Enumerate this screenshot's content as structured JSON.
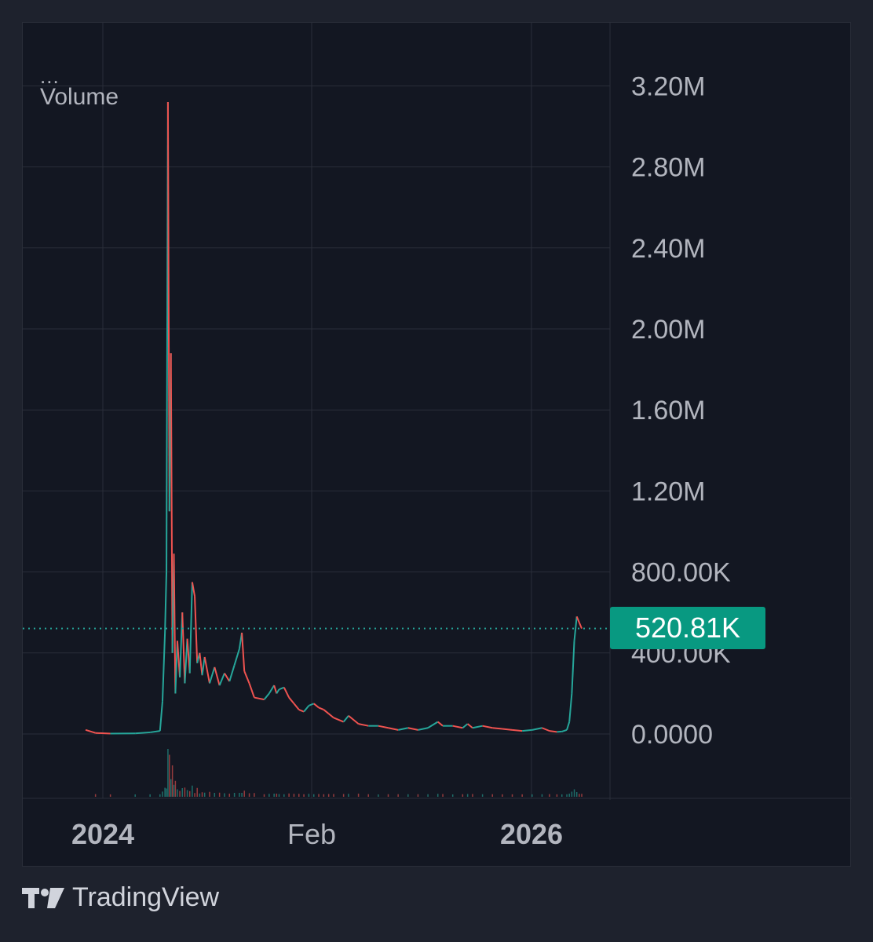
{
  "legend": {
    "menu": "...",
    "indicator": "Volume"
  },
  "last_value_label": "520.81K",
  "brand": {
    "name": "TradingView",
    "icon": "tradingview-logo-icon"
  },
  "colors": {
    "background": "#131722",
    "up": "#26a69a",
    "down": "#ef5350",
    "last_value_tag": "#089981",
    "grid": "#2a2e39",
    "axis_text": "#b2b5be"
  },
  "chart_data": {
    "type": "line",
    "x_tick_labels": [
      "2024",
      "Feb",
      "2026"
    ],
    "y_tick_labels": [
      "3.20M",
      "2.80M",
      "2.40M",
      "2.00M",
      "1.60M",
      "1.20M",
      "800.00K",
      "400.00K",
      "0.0000"
    ],
    "y_ticks": [
      3200000,
      2800000,
      2400000,
      2000000,
      1600000,
      1200000,
      800000,
      400000,
      0
    ],
    "ylim": [
      0,
      3300000
    ],
    "last_value": 520810,
    "grid": true,
    "series": [
      {
        "color_scheme": "up/down",
        "points": [
          [
            0,
            20000
          ],
          [
            0.02,
            5000
          ],
          [
            0.05,
            2000
          ],
          [
            0.1,
            3000
          ],
          [
            0.13,
            8000
          ],
          [
            0.15,
            15000
          ],
          [
            0.155,
            160000
          ],
          [
            0.16,
            500000
          ],
          [
            0.163,
            800000
          ],
          [
            0.166,
            3120000
          ],
          [
            0.169,
            1100000
          ],
          [
            0.172,
            1880000
          ],
          [
            0.175,
            400000
          ],
          [
            0.178,
            890000
          ],
          [
            0.181,
            200000
          ],
          [
            0.185,
            460000
          ],
          [
            0.19,
            280000
          ],
          [
            0.195,
            600000
          ],
          [
            0.2,
            250000
          ],
          [
            0.205,
            470000
          ],
          [
            0.21,
            300000
          ],
          [
            0.215,
            750000
          ],
          [
            0.22,
            680000
          ],
          [
            0.225,
            350000
          ],
          [
            0.23,
            400000
          ],
          [
            0.235,
            290000
          ],
          [
            0.24,
            380000
          ],
          [
            0.25,
            250000
          ],
          [
            0.26,
            330000
          ],
          [
            0.27,
            240000
          ],
          [
            0.28,
            300000
          ],
          [
            0.29,
            260000
          ],
          [
            0.3,
            340000
          ],
          [
            0.31,
            420000
          ],
          [
            0.315,
            500000
          ],
          [
            0.32,
            310000
          ],
          [
            0.33,
            250000
          ],
          [
            0.34,
            180000
          ],
          [
            0.36,
            170000
          ],
          [
            0.37,
            200000
          ],
          [
            0.38,
            240000
          ],
          [
            0.385,
            200000
          ],
          [
            0.39,
            220000
          ],
          [
            0.4,
            230000
          ],
          [
            0.41,
            180000
          ],
          [
            0.42,
            150000
          ],
          [
            0.43,
            120000
          ],
          [
            0.44,
            110000
          ],
          [
            0.45,
            140000
          ],
          [
            0.46,
            150000
          ],
          [
            0.47,
            130000
          ],
          [
            0.48,
            120000
          ],
          [
            0.49,
            100000
          ],
          [
            0.5,
            80000
          ],
          [
            0.52,
            60000
          ],
          [
            0.53,
            90000
          ],
          [
            0.55,
            50000
          ],
          [
            0.57,
            40000
          ],
          [
            0.59,
            40000
          ],
          [
            0.61,
            30000
          ],
          [
            0.63,
            20000
          ],
          [
            0.65,
            30000
          ],
          [
            0.67,
            20000
          ],
          [
            0.69,
            30000
          ],
          [
            0.71,
            60000
          ],
          [
            0.72,
            40000
          ],
          [
            0.74,
            40000
          ],
          [
            0.76,
            30000
          ],
          [
            0.77,
            50000
          ],
          [
            0.78,
            30000
          ],
          [
            0.8,
            40000
          ],
          [
            0.82,
            30000
          ],
          [
            0.84,
            25000
          ],
          [
            0.86,
            20000
          ],
          [
            0.88,
            15000
          ],
          [
            0.9,
            20000
          ],
          [
            0.92,
            30000
          ],
          [
            0.935,
            15000
          ],
          [
            0.95,
            10000
          ],
          [
            0.96,
            12000
          ],
          [
            0.97,
            20000
          ],
          [
            0.975,
            60000
          ],
          [
            0.98,
            200000
          ],
          [
            0.985,
            460000
          ],
          [
            0.99,
            580000
          ],
          [
            0.995,
            550000
          ],
          [
            1.0,
            520810
          ]
        ]
      }
    ]
  }
}
